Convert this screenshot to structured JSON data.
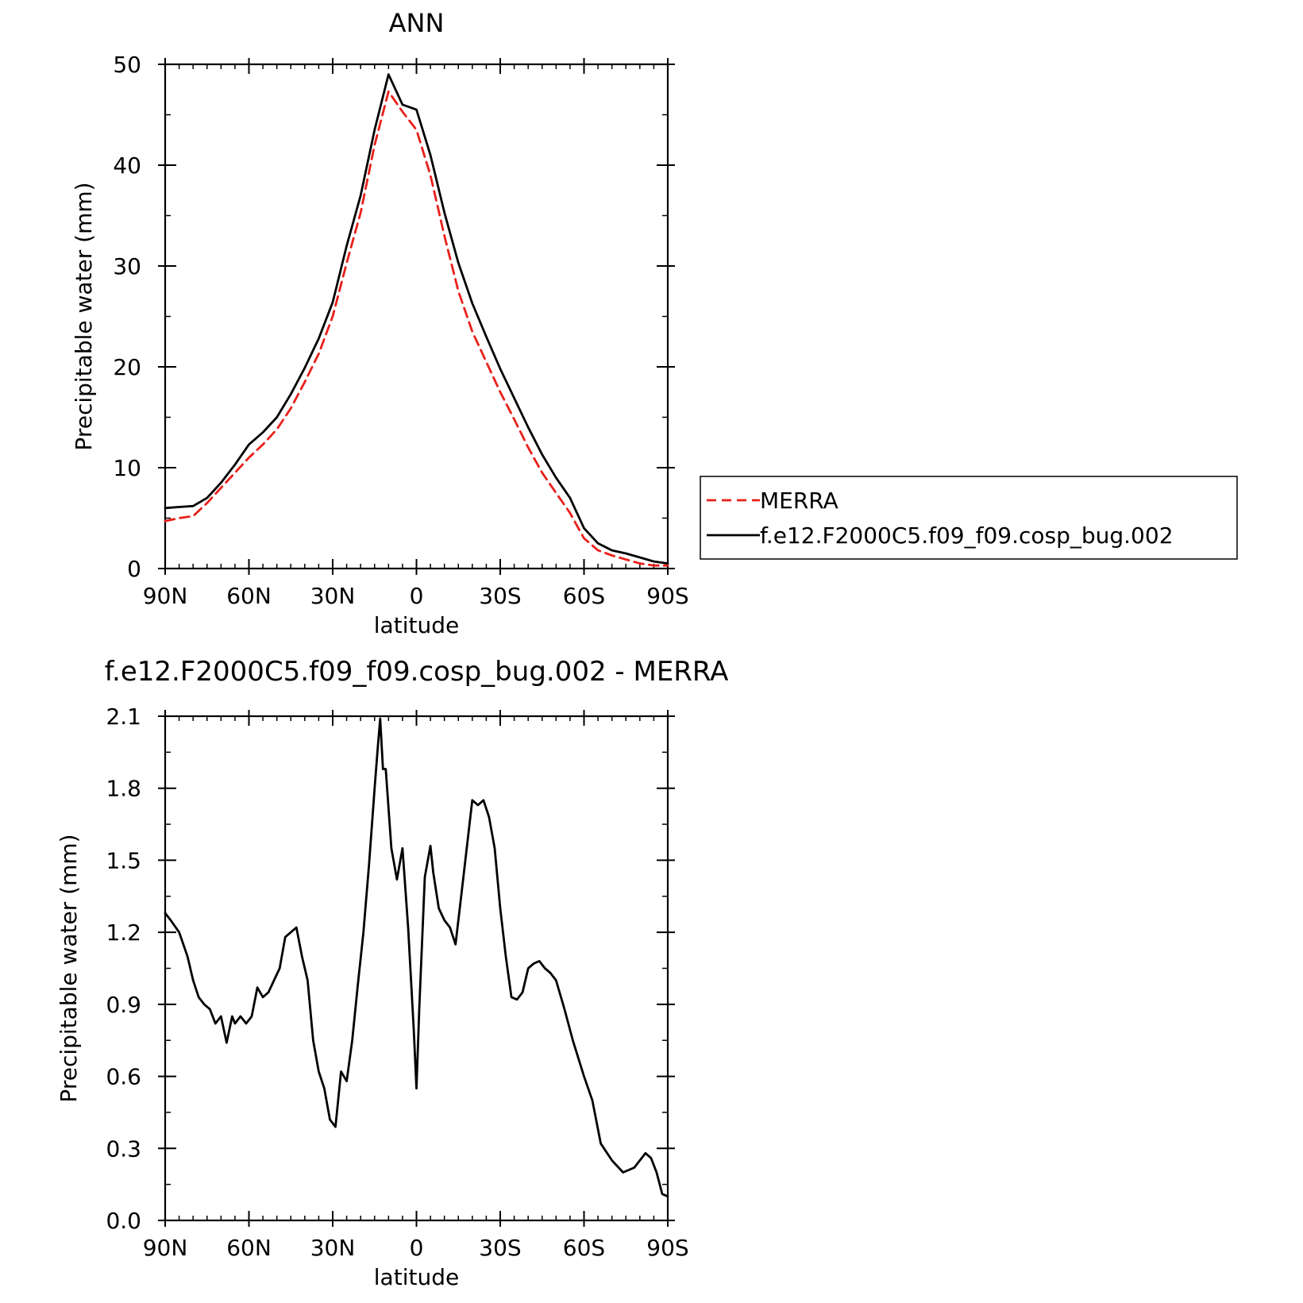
{
  "chart_data": [
    {
      "type": "line",
      "title": "ANN",
      "xlabel": "latitude",
      "ylabel": "Precipitable water (mm)",
      "xlim": [
        90,
        -90
      ],
      "ylim": [
        0,
        50
      ],
      "xticks": [
        90,
        60,
        30,
        0,
        -30,
        -60,
        -90
      ],
      "xtick_labels": [
        "90N",
        "60N",
        "30N",
        "0",
        "30S",
        "60S",
        "90S"
      ],
      "yticks": [
        0,
        10,
        20,
        30,
        40,
        50
      ],
      "ytick_labels": [
        "0",
        "10",
        "20",
        "30",
        "40",
        "50"
      ],
      "legend_position": "right",
      "series": [
        {
          "name": "MERRA",
          "color": "#e8201a",
          "dash": "dashed",
          "x": [
            90,
            85,
            80,
            75,
            70,
            65,
            60,
            55,
            50,
            45,
            40,
            35,
            30,
            25,
            20,
            15,
            10,
            5,
            0,
            -5,
            -10,
            -15,
            -20,
            -25,
            -30,
            -35,
            -40,
            -45,
            -50,
            -55,
            -60,
            -65,
            -70,
            -75,
            -80,
            -85,
            -90
          ],
          "y": [
            4.7,
            5.0,
            5.2,
            6.5,
            8.0,
            9.5,
            11.0,
            12.3,
            13.8,
            15.9,
            18.5,
            21.3,
            25.0,
            30.3,
            35.3,
            42.0,
            47.3,
            45.3,
            43.5,
            39.0,
            33.0,
            27.5,
            23.5,
            20.5,
            17.5,
            14.8,
            12.0,
            9.5,
            7.5,
            5.5,
            3.0,
            1.8,
            1.3,
            0.9,
            0.5,
            0.3,
            0.3
          ]
        },
        {
          "name": "f.e12.F2000C5.f09_f09.cosp_bug.002",
          "color": "#000000",
          "dash": "solid",
          "x": [
            90,
            85,
            80,
            75,
            70,
            65,
            60,
            55,
            50,
            45,
            40,
            35,
            30,
            25,
            20,
            15,
            10,
            5,
            0,
            -5,
            -10,
            -15,
            -20,
            -25,
            -30,
            -35,
            -40,
            -45,
            -50,
            -55,
            -60,
            -65,
            -70,
            -75,
            -80,
            -85,
            -90
          ],
          "y": [
            6.0,
            6.1,
            6.2,
            7.0,
            8.5,
            10.3,
            12.3,
            13.5,
            15.0,
            17.3,
            19.9,
            22.8,
            26.4,
            32.0,
            37.0,
            43.5,
            49.0,
            46.0,
            45.5,
            41.0,
            35.3,
            30.3,
            26.3,
            23.0,
            19.8,
            16.9,
            14.0,
            11.3,
            9.0,
            7.0,
            4.0,
            2.5,
            1.8,
            1.5,
            1.1,
            0.7,
            0.5
          ]
        }
      ]
    },
    {
      "type": "line",
      "title": "f.e12.F2000C5.f09_f09.cosp_bug.002 - MERRA",
      "xlabel": "latitude",
      "ylabel": "Precipitable water (mm)",
      "xlim": [
        90,
        -90
      ],
      "ylim": [
        0.0,
        2.1
      ],
      "xticks": [
        90,
        60,
        30,
        0,
        -30,
        -60,
        -90
      ],
      "xtick_labels": [
        "90N",
        "60N",
        "30N",
        "0",
        "30S",
        "60S",
        "90S"
      ],
      "yticks": [
        0.0,
        0.3,
        0.6,
        0.9,
        1.2,
        1.5,
        1.8,
        2.1
      ],
      "ytick_labels": [
        "0.0",
        "0.3",
        "0.6",
        "0.9",
        "1.2",
        "1.5",
        "1.8",
        "2.1"
      ],
      "series": [
        {
          "color": "#000000",
          "dash": "solid",
          "x": [
            90,
            88,
            85,
            82,
            80,
            78,
            76,
            74,
            72,
            70,
            68,
            66,
            65,
            63,
            61,
            59,
            57,
            55,
            53,
            51,
            49,
            47,
            45,
            43,
            41,
            39,
            37,
            35,
            33,
            31,
            29,
            27,
            25,
            23,
            21,
            19,
            17,
            15,
            14,
            13,
            12,
            11,
            9,
            7,
            5,
            3,
            1,
            0,
            -1,
            -3,
            -5,
            -6,
            -8,
            -10,
            -12,
            -14,
            -16,
            -18,
            -20,
            -22,
            -24,
            -26,
            -28,
            -30,
            -32,
            -34,
            -36,
            -38,
            -40,
            -42,
            -44,
            -46,
            -48,
            -50,
            -53,
            -56,
            -60,
            -63,
            -66,
            -70,
            -74,
            -78,
            -82,
            -84,
            -86,
            -88,
            -90
          ],
          "y": [
            1.28,
            1.25,
            1.2,
            1.1,
            1.0,
            0.93,
            0.9,
            0.88,
            0.82,
            0.85,
            0.74,
            0.85,
            0.82,
            0.85,
            0.82,
            0.85,
            0.97,
            0.93,
            0.95,
            1.0,
            1.05,
            1.18,
            1.2,
            1.22,
            1.1,
            1.0,
            0.75,
            0.62,
            0.55,
            0.42,
            0.39,
            0.62,
            0.58,
            0.75,
            0.98,
            1.2,
            1.48,
            1.8,
            1.95,
            2.09,
            1.88,
            1.88,
            1.55,
            1.42,
            1.55,
            1.22,
            0.8,
            0.55,
            0.88,
            1.43,
            1.56,
            1.45,
            1.3,
            1.25,
            1.22,
            1.15,
            1.35,
            1.55,
            1.75,
            1.73,
            1.75,
            1.68,
            1.55,
            1.3,
            1.1,
            0.93,
            0.92,
            0.95,
            1.05,
            1.07,
            1.08,
            1.05,
            1.03,
            1.0,
            0.88,
            0.75,
            0.6,
            0.5,
            0.32,
            0.25,
            0.2,
            0.22,
            0.28,
            0.26,
            0.2,
            0.11,
            0.1
          ]
        }
      ]
    }
  ]
}
